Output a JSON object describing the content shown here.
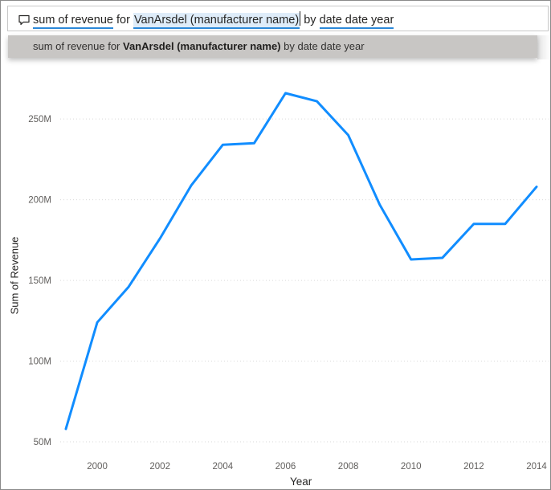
{
  "qna": {
    "icon": "comment-icon",
    "terms": [
      {
        "text": "sum of revenue",
        "style": "underlined"
      },
      {
        "text": " for ",
        "style": "plain"
      },
      {
        "text": "VanArsdel (manufacturer name)",
        "style": "selected"
      },
      {
        "text": " by ",
        "style": "plain"
      },
      {
        "text": "date date year",
        "style": "underlined"
      }
    ],
    "suggestion": {
      "prefix": "sum of revenue for ",
      "bold": "VanArsdel (manufacturer name)",
      "suffix": " by date date year"
    }
  },
  "chart_data": {
    "type": "line",
    "title": "",
    "xlabel": "Year",
    "ylabel": "Sum of Revenue",
    "x": [
      1999,
      2000,
      2001,
      2002,
      2003,
      2004,
      2005,
      2006,
      2007,
      2008,
      2009,
      2010,
      2011,
      2012,
      2013,
      2014
    ],
    "series": [
      {
        "color": "#118dff",
        "values": [
          58,
          124,
          146,
          176,
          209,
          234,
          235,
          266,
          261,
          240,
          197,
          163,
          164,
          185,
          185,
          208
        ]
      }
    ],
    "value_unit": "M",
    "x_ticks": [
      "2000",
      "2002",
      "2004",
      "2006",
      "2008",
      "2010",
      "2012",
      "2014"
    ],
    "y_ticks": [
      "50M",
      "100M",
      "150M",
      "200M",
      "250M"
    ],
    "y_tick_values": [
      50,
      100,
      150,
      200,
      250
    ],
    "xlim": [
      1999,
      2014
    ],
    "ylim": [
      50,
      266
    ],
    "grid": "horizontal dotted"
  }
}
